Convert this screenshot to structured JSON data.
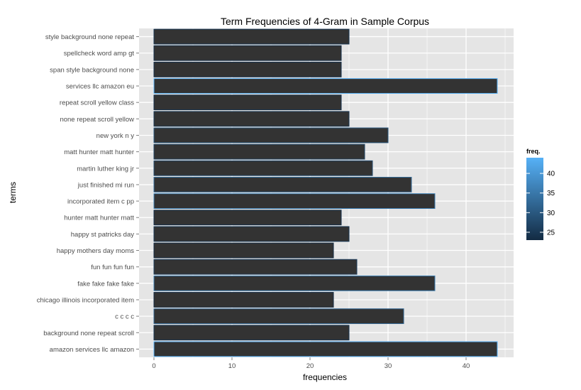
{
  "chart_data": {
    "type": "bar",
    "orientation": "horizontal",
    "title": "Term Frequencies of 4-Gram in Sample Corpus",
    "xlabel": "frequencies",
    "ylabel": "terms",
    "xlim": [
      0,
      46
    ],
    "xticks": [
      0,
      10,
      20,
      30,
      40
    ],
    "grid": true,
    "categories": [
      "amazon services llc amazon",
      "background none repeat scroll",
      "c c c c",
      "chicago illinois incorporated item",
      "fake fake fake fake",
      "fun fun fun fun",
      "happy mothers day moms",
      "happy st patricks day",
      "hunter matt hunter matt",
      "incorporated item c pp",
      "just finished mi run",
      "martin luther king jr",
      "matt hunter matt hunter",
      "new york n y",
      "none repeat scroll yellow",
      "repeat scroll yellow class",
      "services llc amazon eu",
      "span style background none",
      "spellcheck word amp gt",
      "style background none repeat"
    ],
    "values": [
      44,
      25,
      32,
      23,
      36,
      26,
      23,
      25,
      24,
      36,
      33,
      28,
      27,
      30,
      25,
      24,
      44,
      24,
      24,
      25
    ],
    "legend": {
      "title": "freq.",
      "placement": "right",
      "ticks": [
        25,
        30,
        35,
        40
      ],
      "range": [
        23,
        44
      ],
      "color_low": "#132b43",
      "color_high": "#56b1f7"
    },
    "bar_fill": "#333333",
    "panel_background": "#e5e5e5",
    "grid_color": "#ffffff"
  }
}
